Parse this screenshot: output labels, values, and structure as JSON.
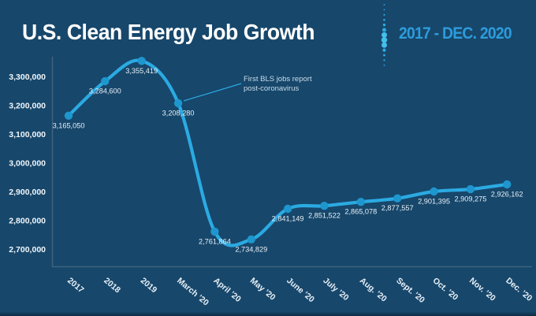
{
  "chart_data": {
    "type": "line",
    "title": "U.S. Clean Energy Job Growth",
    "subtitle": "2017 - DEC. 2020",
    "categories": [
      "2017",
      "2018",
      "2019",
      "March ’20",
      "April ’20",
      "May ’20",
      "June ’20",
      "July ’20",
      "Aug. ’20",
      "Sept. ’20",
      "Oct. ’20",
      "Nov. ’20",
      "Dec. ’20"
    ],
    "values": [
      3165050,
      3284600,
      3355419,
      3208280,
      2761864,
      2734829,
      2841149,
      2851522,
      2865078,
      2877557,
      2901395,
      2909275,
      2926162
    ],
    "point_labels": [
      "3,165,050",
      "3,284,600",
      "3,355,419",
      "3,208,280",
      "2,761,864",
      "2,734,829",
      "2,841,149",
      "2,851,522",
      "2,865,078",
      "2,877,557",
      "2,901,395",
      "2,909,275",
      "2,926,162"
    ],
    "y_ticks": [
      {
        "label": "3,300,000",
        "value": 3300000
      },
      {
        "label": "3,200,000",
        "value": 3200000
      },
      {
        "label": "3,100,000",
        "value": 3100000
      },
      {
        "label": "3,000,000",
        "value": 3000000
      },
      {
        "label": "2,900,000",
        "value": 2900000
      },
      {
        "label": "2,800,000",
        "value": 2800000
      },
      {
        "label": "2,700,000",
        "value": 2700000
      }
    ],
    "ylim": [
      2700000,
      3300000
    ],
    "xlabel": "",
    "ylabel": "",
    "grid": "off",
    "legend": "none",
    "annotation": {
      "line1": "First BLS jobs report",
      "line2": "post-coronavirus",
      "target": "March ’20"
    },
    "colors": {
      "background": "#17476B",
      "line": "#2BAAE2",
      "point": "#1E96CE",
      "accent": "#2D9CDB",
      "axis": "#3D627F",
      "label_text": "#E7F0F7",
      "annotation_text": "#C9DDEB"
    }
  }
}
